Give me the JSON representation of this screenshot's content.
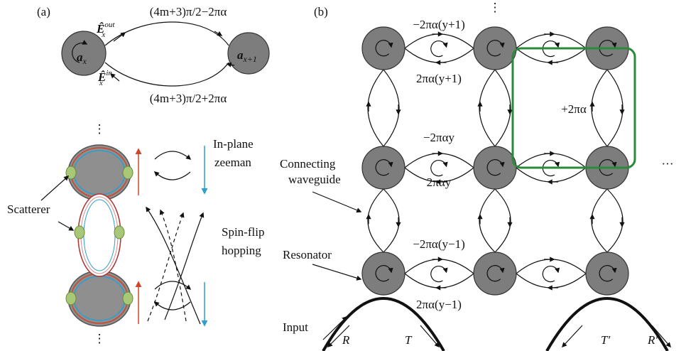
{
  "panel_a": {
    "label": "(a)",
    "phase_top": "(4m+3)π/2−2πα",
    "phase_bottom": "(4m+3)π/2+2πα",
    "field_out": {
      "symbol": "Ê",
      "sub": "x",
      "sup": "out"
    },
    "field_in": {
      "symbol": "Ê",
      "sub": "x",
      "sup": "in"
    },
    "mode_left": {
      "symbol": "a",
      "sub": "x"
    },
    "mode_right": {
      "symbol": "a",
      "sub": "x+1"
    },
    "dots": [
      "⋮",
      "⋮"
    ],
    "scatterer": "Scatterer",
    "zeeman": [
      "In-plane",
      "zeeman"
    ],
    "hopping": [
      "Spin-flip",
      "hopping"
    ]
  },
  "panel_b": {
    "label": "(b)",
    "phases": [
      "−2πα(y+1)",
      "2πα(y+1)",
      "−2παy",
      "2παy",
      "−2πα(y−1)",
      "2πα(y−1)"
    ],
    "flux": "+2πα",
    "waveguide": [
      "Connecting",
      "waveguide"
    ],
    "resonator": "Resonator",
    "input": "Input",
    "ports": [
      "R",
      "T",
      "T′",
      "R′"
    ],
    "dots_top": "⋮",
    "dots_right": "···"
  }
}
